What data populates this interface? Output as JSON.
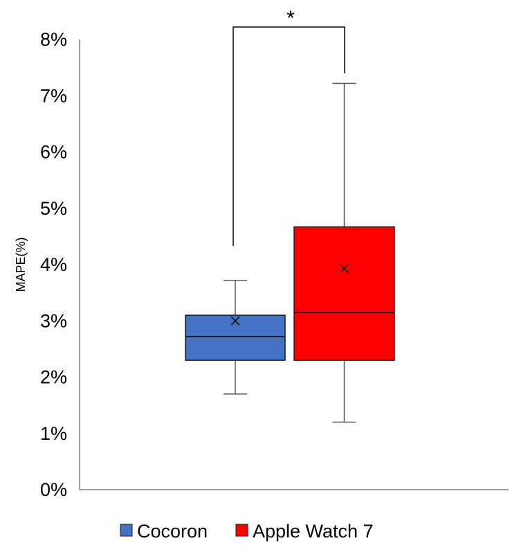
{
  "chart_data": {
    "type": "box",
    "ylabel": "MAPE(%)",
    "ylim": [
      0,
      8
    ],
    "yticks": [
      "0%",
      "1%",
      "2%",
      "3%",
      "4%",
      "5%",
      "6%",
      "7%",
      "8%"
    ],
    "grid": false,
    "legend_position": "bottom",
    "significance": "*",
    "series": [
      {
        "name": "Cocoron",
        "color": "#4472C4",
        "min": 1.7,
        "q1": 2.3,
        "median": 2.72,
        "q3": 3.1,
        "max": 3.72,
        "mean": 3.0
      },
      {
        "name": "Apple Watch 7",
        "color": "#FF0000",
        "min": 1.2,
        "q1": 2.3,
        "median": 3.15,
        "q3": 4.67,
        "max": 7.22,
        "mean": 3.93
      }
    ]
  }
}
